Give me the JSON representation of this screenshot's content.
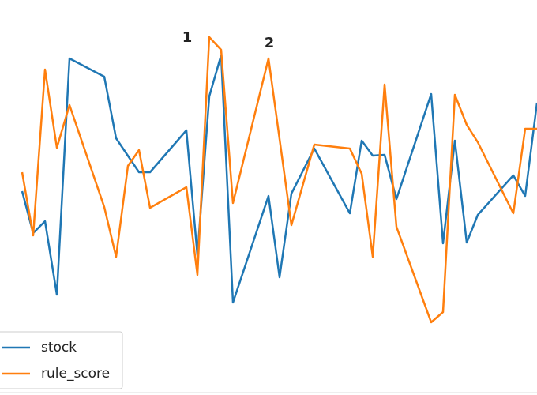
{
  "chart_data": {
    "type": "line",
    "annotations": [
      "1",
      "2"
    ],
    "xlim": [
      0,
      68
    ],
    "ylim": [
      0,
      100
    ],
    "legend": "lower left",
    "series": [
      {
        "name": "stock",
        "color": "#1f77b4",
        "x": [
          2.8,
          4.2,
          5.7,
          7.2,
          8.8,
          13.2,
          14.7,
          17.6,
          19,
          23.6,
          25,
          26.5,
          28,
          29.5,
          34,
          35.4,
          36.9,
          39.8,
          44.3,
          45.8,
          47.2,
          48.7,
          50.2,
          54.6,
          56.1,
          57.6,
          59.1,
          60.5,
          65,
          66.5,
          68
        ],
        "values": [
          51.6,
          41,
          44,
          25.4,
          85.2,
          80.6,
          65,
          56.4,
          56.4,
          67,
          35.4,
          75.6,
          86,
          23.4,
          50.4,
          29.8,
          51,
          62.4,
          46,
          64.4,
          60.6,
          60.8,
          49.6,
          76.2,
          38.4,
          64.4,
          38.6,
          45.6,
          55.6,
          50.4,
          74
        ]
      },
      {
        "name": "rule_score",
        "color": "#ff7f0e",
        "x": [
          2.8,
          4.2,
          5.7,
          7.2,
          8.8,
          13.2,
          14.7,
          16.2,
          17.6,
          19,
          23.6,
          25,
          26.5,
          28,
          29.5,
          34,
          36.9,
          39.8,
          44.3,
          45.8,
          47.2,
          48.7,
          50.2,
          54.6,
          56.1,
          57.6,
          59.1,
          60.5,
          65,
          66.5,
          68
        ],
        "values": [
          56.4,
          40.4,
          82.4,
          62.6,
          73.4,
          47.6,
          35,
          58,
          62,
          47.4,
          52.6,
          30.4,
          90.6,
          87.4,
          48.6,
          85.2,
          43,
          63.4,
          62.4,
          56,
          35,
          78.6,
          42.6,
          18.4,
          21,
          76,
          68.4,
          64,
          46,
          67.4,
          67.4
        ]
      }
    ]
  }
}
